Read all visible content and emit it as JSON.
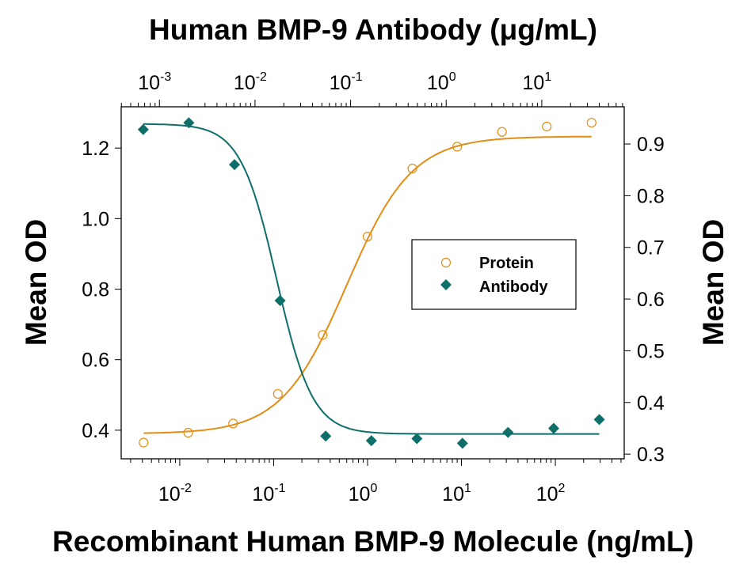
{
  "chart_data": {
    "type": "scatter",
    "title_top": "Human BMP-9 Antibody (μg/mL)",
    "xlabel": "Recombinant Human BMP-9 Molecule (ng/mL)",
    "ylabel_left": "Mean OD",
    "ylabel_right": "Mean OD",
    "x_bottom": {
      "scale": "log",
      "xlim": [
        0.00238,
        541
      ],
      "ticks": [
        {
          "base": "10",
          "exp": "-2",
          "value": 0.01
        },
        {
          "base": "10",
          "exp": "-1",
          "value": 0.1
        },
        {
          "base": "10",
          "exp": "0",
          "value": 1
        },
        {
          "base": "10",
          "exp": "1",
          "value": 10
        },
        {
          "base": "10",
          "exp": "2",
          "value": 100
        }
      ]
    },
    "x_top": {
      "scale": "log",
      "xlim": [
        0.000398,
        72.9
      ],
      "ticks": [
        {
          "base": "10",
          "exp": "-3",
          "value": 0.001
        },
        {
          "base": "10",
          "exp": "-2",
          "value": 0.01
        },
        {
          "base": "10",
          "exp": "-1",
          "value": 0.1
        },
        {
          "base": "10",
          "exp": "0",
          "value": 1
        },
        {
          "base": "10",
          "exp": "1",
          "value": 10
        }
      ]
    },
    "y_left": {
      "ylim": [
        0.319,
        1.317
      ],
      "ticks": [
        {
          "label": "0.4",
          "value": 0.4
        },
        {
          "label": "0.6",
          "value": 0.6
        },
        {
          "label": "0.8",
          "value": 0.8
        },
        {
          "label": "1.0",
          "value": 1.0
        },
        {
          "label": "1.2",
          "value": 1.2
        }
      ]
    },
    "y_right": {
      "ylim": [
        0.291,
        0.972
      ],
      "ticks": [
        {
          "label": "0.3",
          "value": 0.3
        },
        {
          "label": "0.4",
          "value": 0.4
        },
        {
          "label": "0.5",
          "value": 0.5
        },
        {
          "label": "0.6",
          "value": 0.6
        },
        {
          "label": "0.7",
          "value": 0.7
        },
        {
          "label": "0.8",
          "value": 0.8
        },
        {
          "label": "0.9",
          "value": 0.9
        }
      ]
    },
    "grid": false,
    "legend_position": "center-right",
    "series": [
      {
        "name": "Protein",
        "marker": "open-circle",
        "color": "#E38D17",
        "x_axis": "bottom",
        "y_axis": "left",
        "x": [
          0.00412,
          0.0123,
          0.037,
          0.111,
          0.333,
          1,
          3,
          9,
          27,
          81,
          243
        ],
        "y": [
          0.365,
          0.393,
          0.419,
          0.503,
          0.67,
          0.949,
          1.142,
          1.204,
          1.246,
          1.261,
          1.272
        ],
        "fit": {
          "bottom": 0.39,
          "top": 1.233,
          "ec50": 0.6,
          "hill": 1.25
        }
      },
      {
        "name": "Antibody",
        "marker": "filled-diamond",
        "color": "#0E6E69",
        "x_axis": "top",
        "y_axis": "right",
        "x": [
          0.000677,
          0.00203,
          0.0061,
          0.0183,
          0.0549,
          0.165,
          0.494,
          1.48,
          4.44,
          13.33,
          40
        ],
        "y": [
          0.928,
          0.941,
          0.86,
          0.597,
          0.335,
          0.326,
          0.33,
          0.321,
          0.342,
          0.35,
          0.367
        ],
        "fit": {
          "bottom": 0.339,
          "top": 0.939,
          "ec50": 0.0168,
          "hill": 2.3
        }
      }
    ]
  }
}
